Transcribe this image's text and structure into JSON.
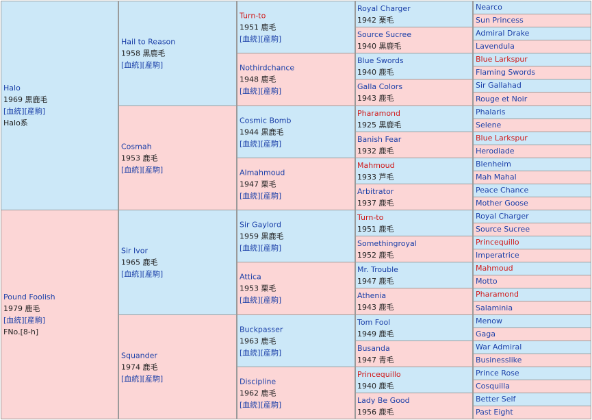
{
  "link_labels": {
    "pedigree": "[血統]",
    "progeny": "[産駒]"
  },
  "gen1": [
    {
      "name": "Halo",
      "year": "1969",
      "color": "黒鹿毛",
      "extra": "Halo系"
    },
    {
      "name": "Pound Foolish",
      "year": "1979",
      "color": "鹿毛",
      "extra": "FNo.[8-h]"
    }
  ],
  "gen2": [
    {
      "name": "Hail to Reason",
      "year": "1958",
      "color": "黒鹿毛"
    },
    {
      "name": "Cosmah",
      "year": "1953",
      "color": "鹿毛"
    },
    {
      "name": "Sir Ivor",
      "year": "1965",
      "color": "鹿毛"
    },
    {
      "name": "Squander",
      "year": "1974",
      "color": "鹿毛"
    }
  ],
  "gen3": [
    {
      "name": "Turn-to",
      "year": "1951",
      "color": "鹿毛"
    },
    {
      "name": "Nothirdchance",
      "year": "1948",
      "color": "鹿毛"
    },
    {
      "name": "Cosmic Bomb",
      "year": "1944",
      "color": "黒鹿毛"
    },
    {
      "name": "Almahmoud",
      "year": "1947",
      "color": "栗毛"
    },
    {
      "name": "Sir Gaylord",
      "year": "1959",
      "color": "黒鹿毛"
    },
    {
      "name": "Attica",
      "year": "1953",
      "color": "栗毛"
    },
    {
      "name": "Buckpasser",
      "year": "1963",
      "color": "鹿毛"
    },
    {
      "name": "Discipline",
      "year": "1962",
      "color": "鹿毛"
    }
  ],
  "gen4": [
    {
      "name": "Royal Charger",
      "line2": "1942 栗毛"
    },
    {
      "name": "Source Sucree",
      "line2": "1940 黒鹿毛"
    },
    {
      "name": "Blue Swords",
      "line2": "1940 鹿毛"
    },
    {
      "name": "Galla Colors",
      "line2": "1943 鹿毛"
    },
    {
      "name": "Pharamond",
      "line2": "1925 黒鹿毛"
    },
    {
      "name": "Banish Fear",
      "line2": "1932 鹿毛"
    },
    {
      "name": "Mahmoud",
      "line2": "1933 芦毛"
    },
    {
      "name": "Arbitrator",
      "line2": "1937 鹿毛"
    },
    {
      "name": "Turn-to",
      "line2": "1951 鹿毛"
    },
    {
      "name": "Somethingroyal",
      "line2": "1952 鹿毛"
    },
    {
      "name": "Mr. Trouble",
      "line2": "1947 鹿毛"
    },
    {
      "name": "Athenia",
      "line2": "1943 鹿毛"
    },
    {
      "name": "Tom Fool",
      "line2": "1949 鹿毛"
    },
    {
      "name": "Busanda",
      "line2": "1947 青毛"
    },
    {
      "name": "Princequillo",
      "line2": "1940 鹿毛"
    },
    {
      "name": "Lady Be Good",
      "line2": "1956 鹿毛"
    }
  ],
  "gen5": [
    {
      "name": "Nearco"
    },
    {
      "name": "Sun Princess"
    },
    {
      "name": "Admiral Drake"
    },
    {
      "name": "Lavendula"
    },
    {
      "name": "Blue Larkspur"
    },
    {
      "name": "Flaming Swords"
    },
    {
      "name": "Sir Gallahad"
    },
    {
      "name": "Rouge et Noir"
    },
    {
      "name": "Phalaris"
    },
    {
      "name": "Selene"
    },
    {
      "name": "Blue Larkspur"
    },
    {
      "name": "Herodiade"
    },
    {
      "name": "Blenheim"
    },
    {
      "name": "Mah Mahal"
    },
    {
      "name": "Peace Chance"
    },
    {
      "name": "Mother Goose"
    },
    {
      "name": "Royal Charger"
    },
    {
      "name": "Source Sucree"
    },
    {
      "name": "Princequillo"
    },
    {
      "name": "Imperatrice"
    },
    {
      "name": "Mahmoud"
    },
    {
      "name": "Motto"
    },
    {
      "name": "Pharamond"
    },
    {
      "name": "Salaminia"
    },
    {
      "name": "Menow"
    },
    {
      "name": "Gaga"
    },
    {
      "name": "War Admiral"
    },
    {
      "name": "Businesslike"
    },
    {
      "name": "Prince Rose"
    },
    {
      "name": "Cosquilla"
    },
    {
      "name": "Better Self"
    },
    {
      "name": "Past Eight"
    }
  ],
  "colors": {
    "sire_bg": "#cce8f8",
    "dam_bg": "#fcd6d6",
    "link": "#1a3fa8",
    "highlight": "#d01818"
  },
  "highlighted": [
    "Turn-to",
    "Blue Larkspur",
    "Pharamond",
    "Mahmoud",
    "Princequillo"
  ]
}
